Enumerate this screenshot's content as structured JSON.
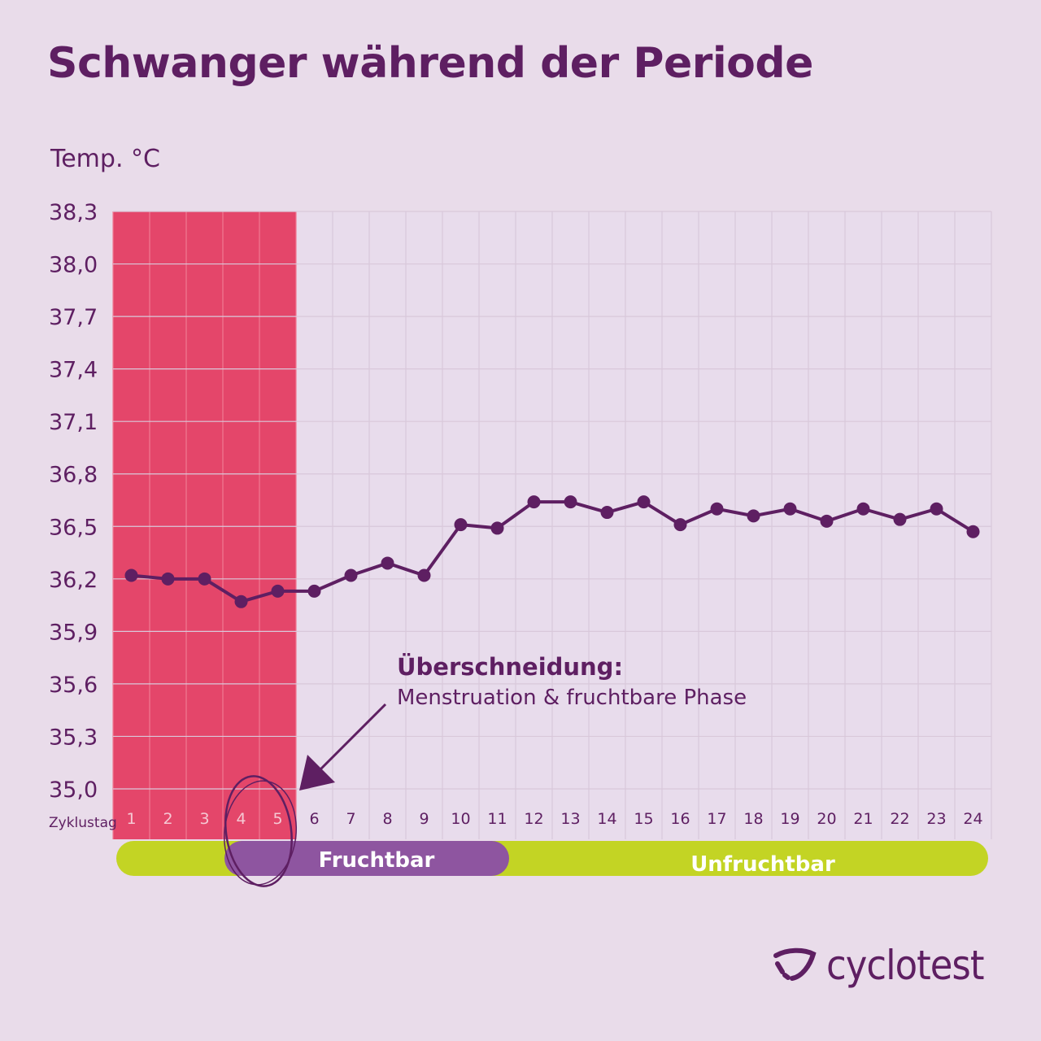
{
  "chart_data": {
    "type": "line",
    "title": "Schwanger während der Periode",
    "ylabel": "Temp. °C",
    "xlabel": "Zyklustag",
    "ylim": [
      35.0,
      38.3
    ],
    "yticks": [
      "38,3",
      "38,0",
      "37,7",
      "37,4",
      "37,1",
      "36,8",
      "36,5",
      "36,2",
      "35,9",
      "35,6",
      "35,3",
      "35,0"
    ],
    "ytick_values": [
      38.3,
      38.0,
      37.7,
      37.4,
      37.1,
      36.8,
      36.5,
      36.2,
      35.9,
      35.6,
      35.3,
      35.0
    ],
    "x": [
      1,
      2,
      3,
      4,
      5,
      6,
      7,
      8,
      9,
      10,
      11,
      12,
      13,
      14,
      15,
      16,
      17,
      18,
      19,
      20,
      21,
      22,
      23,
      24
    ],
    "values": [
      36.22,
      36.2,
      36.2,
      36.07,
      36.13,
      36.13,
      36.22,
      36.29,
      36.22,
      36.51,
      36.49,
      36.64,
      36.64,
      36.58,
      36.64,
      36.51,
      36.6,
      36.56,
      36.6,
      36.53,
      36.6,
      36.54,
      36.6,
      36.47
    ],
    "grid": true,
    "menstruation_days": [
      1,
      5
    ],
    "phases": [
      {
        "label": "Fruchtbar",
        "from_day": 4,
        "to_day": 11,
        "color": "#8e55a0"
      },
      {
        "label": "Unfruchtbar",
        "from_day": 1,
        "to_day": 24,
        "color": "#c3d424"
      }
    ],
    "annotation": {
      "heading": "Überschneidung:",
      "text": "Menstruation & fruchtbare Phase"
    }
  },
  "colors": {
    "background": "#e9dcea",
    "menstruation": "#e4466a",
    "line": "#5e1f62",
    "grid": "#d9c8da"
  },
  "brand": {
    "name": "cyclotest"
  }
}
